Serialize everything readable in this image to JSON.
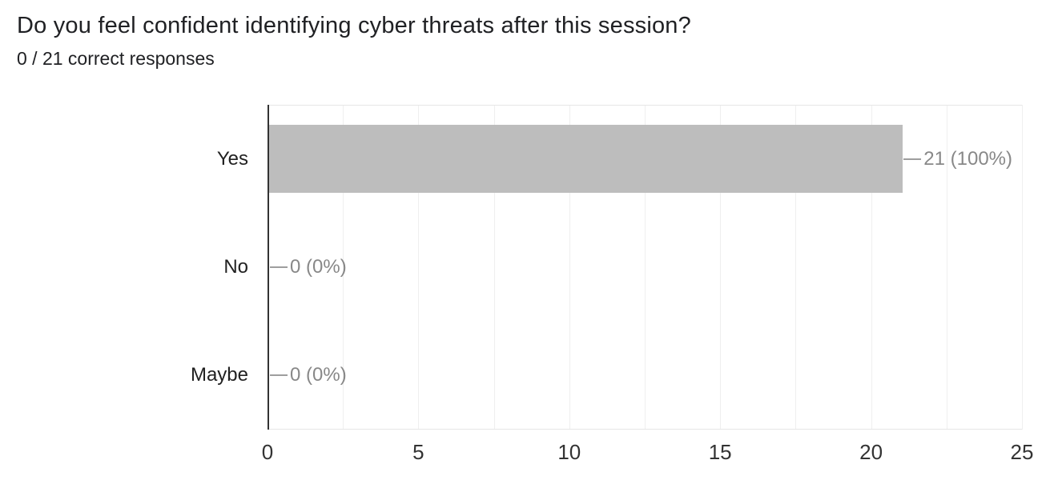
{
  "page": {
    "background": "#ffffff"
  },
  "chart_data": {
    "type": "bar",
    "orientation": "horizontal",
    "title": "Do you feel confident identifying cyber threats after this session?",
    "subtitle": "0 / 21 correct responses",
    "categories": [
      "Yes",
      "No",
      "Maybe"
    ],
    "values": [
      21,
      0,
      0
    ],
    "value_labels": [
      "21 (100%)",
      "0 (0%)",
      "0 (0%)"
    ],
    "total_responses": 21,
    "x_ticks": [
      0,
      5,
      10,
      15,
      20,
      25
    ],
    "xlim": [
      0,
      25
    ],
    "gridline_interval": 2.5,
    "grid_on": true,
    "legend_position": "none",
    "colors": {
      "bar": "#bdbdbd",
      "annotation_text": "#888888",
      "annotation_line": "#9e9e9e",
      "category_label": "#212121",
      "tick_label": "#333333",
      "gridline": "#efefef",
      "axis_line": "#333333",
      "plot_border": "#e6e6e6",
      "title_text": "#202124",
      "subtitle_text": "#202124"
    }
  }
}
